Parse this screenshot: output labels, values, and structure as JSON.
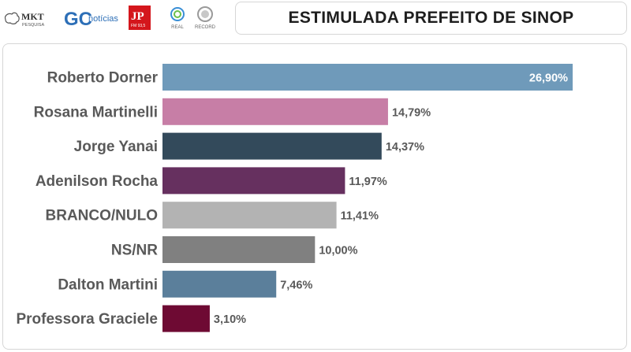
{
  "header": {
    "title": "ESTIMULADA PREFEITO DE SINOP",
    "logos": {
      "mkt": {
        "name": "MKT",
        "sub": "PESQUISA"
      },
      "gc": {
        "mark": "GC",
        "word": "notícias"
      },
      "jp": {
        "mark": "JP",
        "sub": "FM 93,5"
      },
      "real": {
        "name": "REAL"
      },
      "record": {
        "name": "RECORD"
      }
    }
  },
  "chart_data": {
    "type": "bar",
    "orientation": "horizontal",
    "title": "ESTIMULADA PREFEITO DE SINOP",
    "categories": [
      "Roberto Dorner",
      "Rosana Martinelli",
      "Jorge Yanai",
      "Adenilson Rocha",
      "BRANCO/NULO",
      "NS/NR",
      "Dalton Martini",
      "Professora Graciele"
    ],
    "values": [
      26.9,
      14.79,
      14.37,
      11.97,
      11.41,
      10.0,
      7.46,
      3.1
    ],
    "value_labels": [
      "26,90%",
      "14,79%",
      "14,37%",
      "11,97%",
      "11,41%",
      "10,00%",
      "7,46%",
      "3,10%"
    ],
    "colors": [
      "#6f9aba",
      "#c77ea6",
      "#334a5b",
      "#66305f",
      "#b3b3b3",
      "#808080",
      "#5b7f9b",
      "#6e0a33"
    ],
    "xlabel": "",
    "ylabel": "",
    "xlim": [
      0,
      27
    ]
  }
}
